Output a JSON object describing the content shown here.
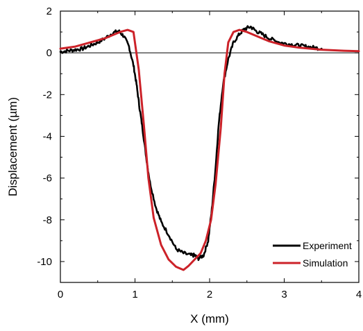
{
  "chart_data": {
    "type": "line",
    "xlabel": "X (mm)",
    "ylabel": "Displacement (µm)",
    "xlim": [
      0,
      4
    ],
    "ylim": [
      -11,
      2
    ],
    "x_ticks": [
      0,
      1,
      2,
      3,
      4
    ],
    "y_ticks": [
      2,
      0,
      -2,
      -4,
      -6,
      -8,
      -10
    ],
    "grid": false,
    "zero_line": true,
    "legend_position": "bottom-right",
    "series": [
      {
        "name": "Experiment",
        "color": "#000000",
        "x": [
          0.0,
          0.1,
          0.2,
          0.3,
          0.4,
          0.5,
          0.6,
          0.7,
          0.78,
          0.85,
          0.92,
          0.98,
          1.02,
          1.06,
          1.1,
          1.15,
          1.2,
          1.28,
          1.35,
          1.45,
          1.55,
          1.65,
          1.75,
          1.8,
          1.85,
          1.92,
          1.98,
          2.03,
          2.08,
          2.12,
          2.18,
          2.25,
          2.32,
          2.4,
          2.47,
          2.55,
          2.62,
          2.7,
          2.8,
          2.9,
          3.0,
          3.1,
          3.2,
          3.3,
          3.4,
          3.5
        ],
        "y": [
          0.05,
          0.1,
          0.15,
          0.2,
          0.35,
          0.5,
          0.7,
          0.95,
          1.05,
          0.8,
          0.3,
          -0.6,
          -1.5,
          -2.6,
          -3.6,
          -5.0,
          -6.2,
          -7.4,
          -8.1,
          -8.7,
          -9.4,
          -9.6,
          -9.7,
          -9.7,
          -9.85,
          -9.7,
          -9.0,
          -7.5,
          -5.5,
          -3.5,
          -1.5,
          -0.3,
          0.5,
          0.9,
          1.15,
          1.25,
          1.05,
          0.9,
          0.7,
          0.55,
          0.45,
          0.4,
          0.35,
          0.3,
          0.25,
          0.2
        ]
      },
      {
        "name": "Simulation",
        "color": "#cc2229",
        "x": [
          0.0,
          0.2,
          0.4,
          0.6,
          0.8,
          0.9,
          0.98,
          1.05,
          1.12,
          1.18,
          1.25,
          1.35,
          1.45,
          1.55,
          1.65,
          1.72,
          1.8,
          1.88,
          1.95,
          2.02,
          2.08,
          2.15,
          2.2,
          2.25,
          2.32,
          2.4,
          2.5,
          2.6,
          2.8,
          3.0,
          3.2,
          3.5,
          3.8,
          4.0
        ],
        "y": [
          0.2,
          0.3,
          0.5,
          0.7,
          1.0,
          1.1,
          1.0,
          -0.8,
          -3.5,
          -6.0,
          -7.9,
          -9.2,
          -9.9,
          -10.25,
          -10.4,
          -10.2,
          -9.9,
          -9.6,
          -9.0,
          -8.0,
          -6.3,
          -3.6,
          -1.0,
          0.5,
          1.0,
          1.1,
          1.0,
          0.85,
          0.55,
          0.35,
          0.25,
          0.15,
          0.1,
          0.08
        ]
      }
    ]
  }
}
